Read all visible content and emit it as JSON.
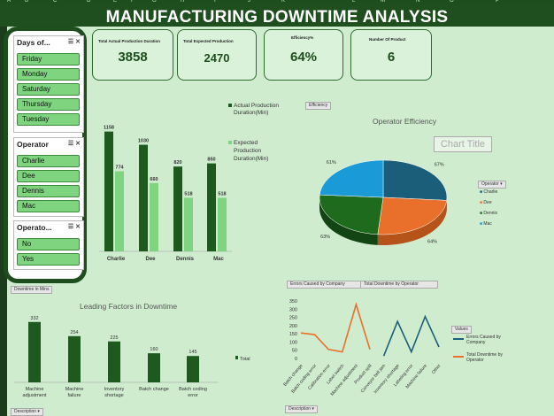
{
  "sheet": {
    "columns": [
      "A",
      "B",
      "C",
      "D",
      "E",
      "F",
      "G",
      "H",
      "I",
      "J",
      "K",
      "L",
      "M",
      "N",
      "O",
      "P"
    ],
    "title": "MANUFACTURING DOWNTIME ANALYSIS"
  },
  "slicers": [
    {
      "title": "Days of...",
      "items": [
        "Friday",
        "Monday",
        "Saturday",
        "Thursday",
        "Tuesday"
      ]
    },
    {
      "title": "Operator",
      "items": [
        "Charlie",
        "Dee",
        "Dennis",
        "Mac"
      ]
    },
    {
      "title": "Operato...",
      "items": [
        "No",
        "Yes"
      ]
    }
  ],
  "kpis": [
    {
      "label": "Total Actual Production Duration",
      "value": "3858"
    },
    {
      "label": "Total Expected Production",
      "value": "2470"
    },
    {
      "label": "Efficiency%",
      "value": "64%"
    },
    {
      "label": "Number Of Product",
      "value": "6"
    }
  ],
  "tags": {
    "efficiency": "Efficiency",
    "downtime_mins": "Downtime in Mins",
    "errors_company": "Errors Caused by Company",
    "total_downtime_operator": "Total Downtime by Operator",
    "description1": "Description",
    "description2": "Description",
    "operator_legend": "Operator",
    "values_legend": "Values"
  },
  "colors": {
    "dark_green": "#1e5a1e",
    "light_green": "#7fd47f",
    "teal": "#1a5e7a",
    "orange": "#e8702a",
    "pie_green": "#1e6b1e",
    "pie_blue": "#1a9ad6"
  },
  "chart_data": [
    {
      "type": "bar",
      "title": "",
      "categories": [
        "Charlie",
        "Dee",
        "Dennis",
        "Mac"
      ],
      "series": [
        {
          "name": "Actual Production Duration(Min)",
          "values": [
            1158,
            1030,
            820,
            850
          ]
        },
        {
          "name": "Expected Production Duration(Min)",
          "values": [
            774,
            660,
            518,
            518
          ]
        }
      ],
      "ylim": [
        0,
        1300
      ]
    },
    {
      "type": "pie",
      "title": "Operator Efficiency",
      "placeholder_title": "Chart Title",
      "categories": [
        "Charlie",
        "Dee",
        "Dennis",
        "Mac"
      ],
      "values": [
        67,
        64,
        63,
        61
      ],
      "labels": [
        "67%",
        "64%",
        "63%",
        "61%"
      ]
    },
    {
      "type": "bar",
      "title": "Leading Factors in Downtime",
      "categories": [
        "Machine adjustment",
        "Machine failure",
        "Inventory shortage",
        "Batch change",
        "Batch coding error"
      ],
      "values": [
        332,
        254,
        225,
        160,
        145
      ],
      "series_name": "Total",
      "ylim": [
        0,
        360
      ]
    },
    {
      "type": "line",
      "title": "",
      "categories": [
        "Batch change",
        "Batch coding error",
        "Calibration error",
        "Label switch",
        "Machine adjustment",
        "Product spill",
        "Conveyor belt jam",
        "Inventory shortage",
        "Labeling error",
        "Machine failure",
        "Other"
      ],
      "series": [
        {
          "name": "Errors Caused by Company",
          "values": [
            155,
            145,
            55,
            40,
            328,
            55,
            null,
            null,
            null,
            null,
            null
          ]
        },
        {
          "name": "Total Downtime by Operator",
          "values": [
            null,
            null,
            null,
            null,
            null,
            null,
            15,
            225,
            40,
            255,
            70
          ]
        }
      ],
      "yticks": [
        0,
        50,
        100,
        150,
        200,
        250,
        300,
        350
      ],
      "ylim": [
        0,
        350
      ]
    }
  ]
}
